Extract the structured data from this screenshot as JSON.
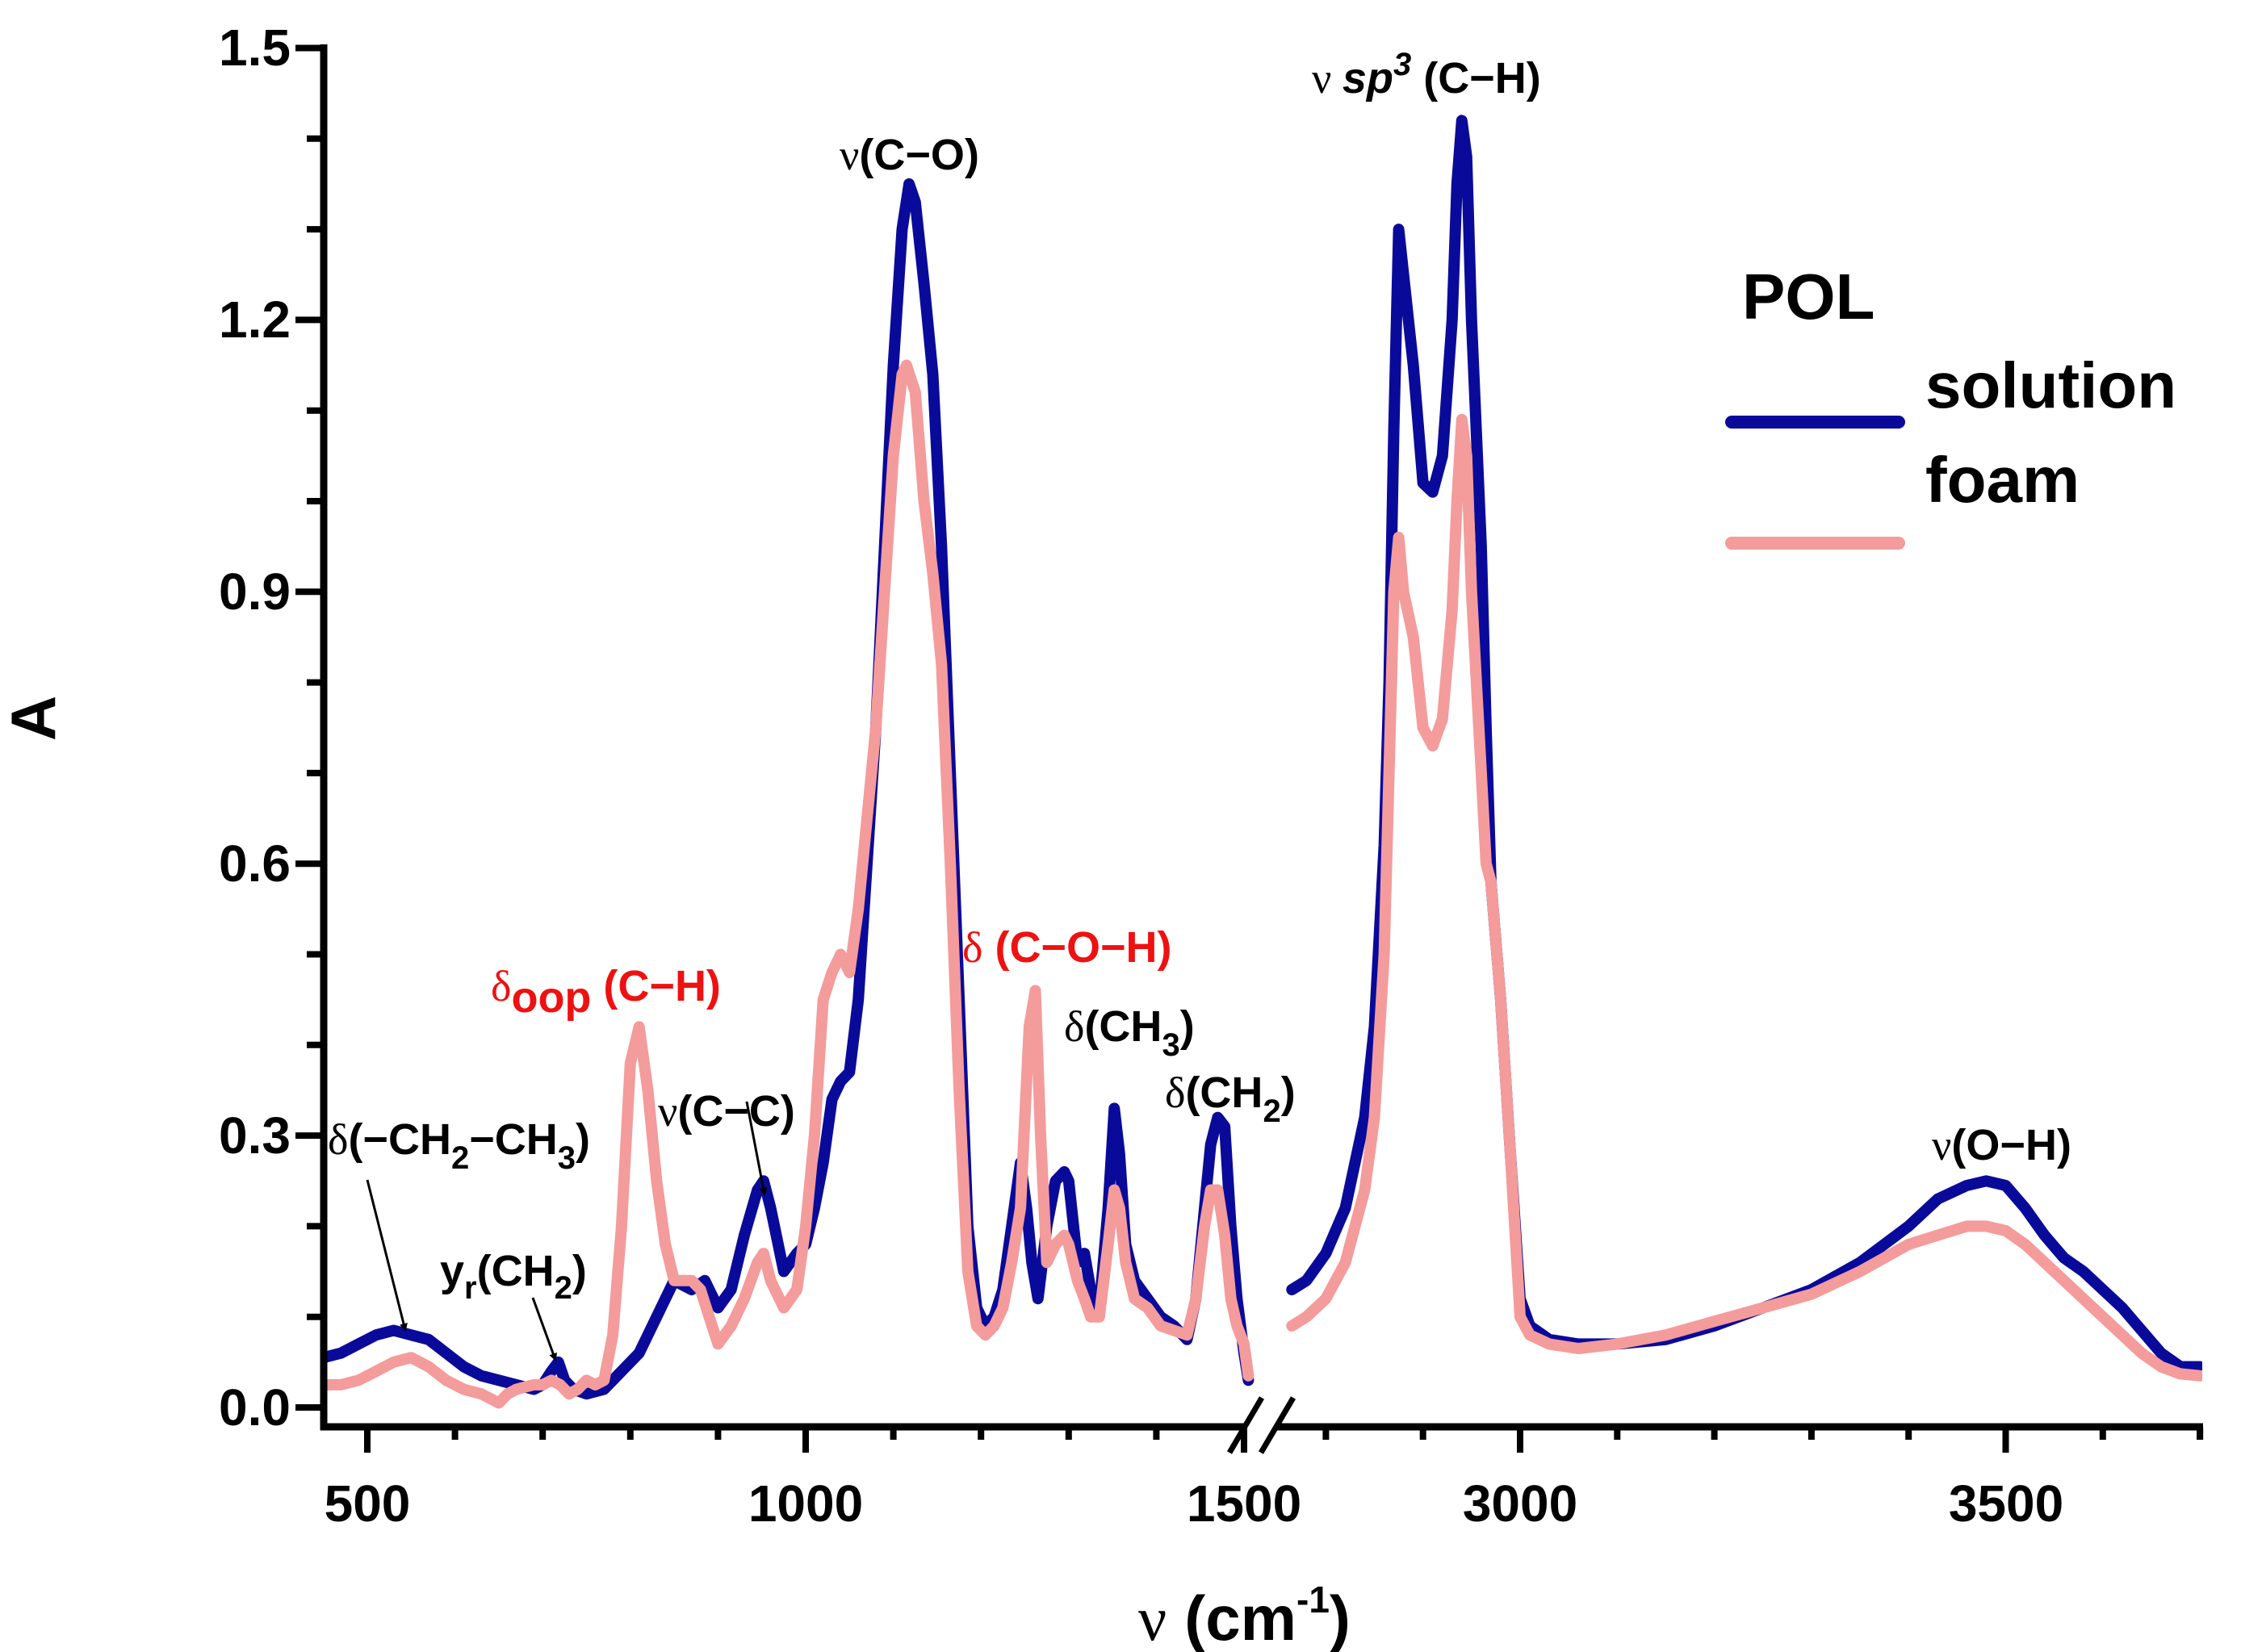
{
  "chart_data": {
    "type": "line",
    "title": "",
    "xlabel": "ν (cm⁻¹)",
    "xlabel_parts": {
      "symbol": "ν",
      "unit": "(cm",
      "exp": "-1",
      "close": ")"
    },
    "ylabel": "A",
    "ylim": [
      0.0,
      1.5
    ],
    "x_segments": [
      {
        "range": [
          450,
          1510
        ],
        "ticks": [
          500,
          1000,
          1500
        ],
        "tick_labels": [
          "500",
          "1000",
          "1500"
        ],
        "minor_step": 100
      },
      {
        "range": [
          2765,
          3700
        ],
        "ticks": [
          3000,
          3500
        ],
        "tick_labels": [
          "3000",
          "3500"
        ],
        "minor_step": 100
      }
    ],
    "axis_break": [
      1510,
      2765
    ],
    "yticks": [
      0.0,
      0.3,
      0.6,
      0.9,
      1.2,
      1.5
    ],
    "ytick_labels": [
      "0.0",
      "0.3",
      "0.6",
      "0.9",
      "1.2",
      "1.5"
    ],
    "y_minor_step": 0.1,
    "grid": false,
    "legend": {
      "title": "POL",
      "position": "top-right",
      "entries": [
        "solution",
        "foam"
      ]
    },
    "series": [
      {
        "name": "solution",
        "color": "#0a0a9a",
        "segments": [
          {
            "x": [
              450,
              470,
              490,
              510,
              530,
              550,
              570,
              590,
              610,
              630,
              650,
              670,
              690,
              700,
              710,
              718,
              725,
              735,
              750,
              770,
              790,
              810,
              830,
              850,
              870,
              885,
              900,
              915,
              930,
              945,
              952,
              960,
              975,
              990,
              1000,
              1010,
              1020,
              1030,
              1040,
              1050,
              1060,
              1070,
              1080,
              1090,
              1100,
              1110,
              1118,
              1125,
              1135,
              1145,
              1155,
              1165,
              1175,
              1185,
              1195,
              1205,
              1215,
              1225,
              1235,
              1245,
              1252,
              1258,
              1265,
              1275,
              1285,
              1295,
              1300,
              1310,
              1318,
              1325,
              1335,
              1345,
              1352,
              1358,
              1365,
              1375,
              1390,
              1405,
              1420,
              1435,
              1445,
              1455,
              1462,
              1470,
              1478,
              1485,
              1492,
              1500,
              1505
            ],
            "y": [
              0.055,
              0.06,
              0.07,
              0.08,
              0.085,
              0.08,
              0.075,
              0.06,
              0.045,
              0.035,
              0.03,
              0.025,
              0.02,
              0.025,
              0.04,
              0.05,
              0.03,
              0.02,
              0.015,
              0.02,
              0.04,
              0.06,
              0.1,
              0.14,
              0.13,
              0.14,
              0.11,
              0.13,
              0.19,
              0.24,
              0.25,
              0.22,
              0.15,
              0.17,
              0.18,
              0.22,
              0.27,
              0.34,
              0.36,
              0.37,
              0.45,
              0.6,
              0.75,
              0.95,
              1.15,
              1.3,
              1.35,
              1.33,
              1.24,
              1.14,
              0.95,
              0.7,
              0.45,
              0.2,
              0.11,
              0.09,
              0.1,
              0.13,
              0.2,
              0.27,
              0.22,
              0.16,
              0.12,
              0.2,
              0.25,
              0.26,
              0.25,
              0.16,
              0.17,
              0.13,
              0.11,
              0.22,
              0.33,
              0.28,
              0.18,
              0.14,
              0.12,
              0.1,
              0.09,
              0.075,
              0.12,
              0.22,
              0.29,
              0.32,
              0.31,
              0.2,
              0.12,
              0.06,
              0.03
            ]
          },
          {
            "x": [
              2765,
              2780,
              2800,
              2820,
              2840,
              2850,
              2860,
              2865,
              2870,
              2875,
              2880,
              2890,
              2900,
              2910,
              2920,
              2930,
              2935,
              2940,
              2945,
              2950,
              2960,
              2965,
              2970,
              2980,
              2990,
              3000,
              3010,
              3030,
              3060,
              3100,
              3150,
              3200,
              3250,
              3300,
              3350,
              3400,
              3430,
              3460,
              3480,
              3500,
              3520,
              3540,
              3560,
              3580,
              3600,
              3620,
              3640,
              3660,
              3680,
              3700
            ],
            "y": [
              0.13,
              0.14,
              0.17,
              0.22,
              0.32,
              0.42,
              0.62,
              0.8,
              1.08,
              1.3,
              1.25,
              1.15,
              1.02,
              1.01,
              1.05,
              1.2,
              1.35,
              1.42,
              1.38,
              1.2,
              0.95,
              0.75,
              0.58,
              0.45,
              0.28,
              0.12,
              0.09,
              0.075,
              0.07,
              0.07,
              0.075,
              0.09,
              0.11,
              0.13,
              0.16,
              0.2,
              0.23,
              0.245,
              0.25,
              0.245,
              0.22,
              0.19,
              0.165,
              0.15,
              0.13,
              0.11,
              0.085,
              0.06,
              0.045,
              0.045
            ]
          }
        ]
      },
      {
        "name": "foam",
        "color": "#f49b9b",
        "segments": [
          {
            "x": [
              450,
              470,
              490,
              510,
              530,
              550,
              570,
              590,
              610,
              630,
              650,
              660,
              670,
              690,
              700,
              710,
              720,
              730,
              740,
              750,
              760,
              770,
              780,
              790,
              800,
              810,
              820,
              830,
              840,
              850,
              860,
              870,
              880,
              890,
              900,
              915,
              930,
              945,
              952,
              960,
              975,
              990,
              1000,
              1010,
              1020,
              1030,
              1040,
              1050,
              1060,
              1070,
              1080,
              1090,
              1100,
              1110,
              1115,
              1125,
              1135,
              1145,
              1155,
              1165,
              1175,
              1185,
              1195,
              1205,
              1215,
              1225,
              1235,
              1245,
              1255,
              1262,
              1268,
              1275,
              1285,
              1295,
              1300,
              1310,
              1318,
              1325,
              1335,
              1345,
              1352,
              1358,
              1365,
              1375,
              1390,
              1405,
              1420,
              1435,
              1445,
              1455,
              1462,
              1470,
              1478,
              1485,
              1492,
              1500,
              1505
            ],
            "y": [
              0.025,
              0.025,
              0.03,
              0.04,
              0.05,
              0.055,
              0.045,
              0.03,
              0.02,
              0.015,
              0.005,
              0.015,
              0.02,
              0.025,
              0.025,
              0.03,
              0.025,
              0.015,
              0.02,
              0.03,
              0.025,
              0.03,
              0.08,
              0.2,
              0.38,
              0.42,
              0.35,
              0.25,
              0.18,
              0.14,
              0.14,
              0.14,
              0.13,
              0.1,
              0.07,
              0.09,
              0.12,
              0.16,
              0.17,
              0.14,
              0.11,
              0.13,
              0.2,
              0.3,
              0.45,
              0.48,
              0.5,
              0.48,
              0.55,
              0.65,
              0.75,
              0.9,
              1.05,
              1.14,
              1.15,
              1.12,
              1.0,
              0.92,
              0.82,
              0.6,
              0.35,
              0.15,
              0.09,
              0.08,
              0.09,
              0.11,
              0.16,
              0.22,
              0.42,
              0.46,
              0.3,
              0.16,
              0.18,
              0.19,
              0.18,
              0.14,
              0.12,
              0.1,
              0.1,
              0.18,
              0.24,
              0.22,
              0.16,
              0.12,
              0.11,
              0.09,
              0.085,
              0.08,
              0.12,
              0.2,
              0.24,
              0.24,
              0.19,
              0.12,
              0.09,
              0.07,
              0.035
            ]
          },
          {
            "x": [
              2765,
              2780,
              2800,
              2820,
              2840,
              2850,
              2860,
              2865,
              2870,
              2875,
              2880,
              2890,
              2900,
              2910,
              2920,
              2930,
              2935,
              2940,
              2945,
              2950,
              2960,
              2965,
              2970,
              2980,
              2990,
              3000,
              3010,
              3030,
              3060,
              3100,
              3150,
              3200,
              3250,
              3300,
              3350,
              3400,
              3430,
              3460,
              3480,
              3500,
              3520,
              3540,
              3560,
              3580,
              3600,
              3620,
              3640,
              3660,
              3680,
              3700
            ],
            "y": [
              0.09,
              0.1,
              0.12,
              0.16,
              0.24,
              0.32,
              0.5,
              0.7,
              0.9,
              0.96,
              0.9,
              0.85,
              0.75,
              0.73,
              0.76,
              0.88,
              1.0,
              1.09,
              1.05,
              0.9,
              0.7,
              0.6,
              0.58,
              0.45,
              0.28,
              0.1,
              0.08,
              0.07,
              0.065,
              0.07,
              0.08,
              0.095,
              0.11,
              0.125,
              0.15,
              0.18,
              0.19,
              0.2,
              0.2,
              0.195,
              0.18,
              0.16,
              0.14,
              0.12,
              0.1,
              0.08,
              0.06,
              0.045,
              0.037,
              0.035
            ]
          }
        ]
      }
    ],
    "annotations": [
      {
        "id": "ann-ch2ch3",
        "parts": [
          "δ",
          "(−CH",
          "2",
          "−CH",
          "3",
          ")"
        ],
        "color": "black",
        "arrow_to": [
          540,
          0.08
        ]
      },
      {
        "id": "ann-yr",
        "parts": [
          "y",
          "r",
          "(CH",
          "2",
          ")"
        ],
        "color": "black",
        "arrow_to": [
          718,
          0.05
        ]
      },
      {
        "id": "ann-cc",
        "parts": [
          "ν",
          "(C−C)"
        ],
        "color": "black",
        "arrow_to": [
          950,
          0.24
        ]
      },
      {
        "id": "ann-oop",
        "parts": [
          "δ",
          "oop",
          " (C−H)"
        ],
        "color": "red"
      },
      {
        "id": "ann-co",
        "parts": [
          "ν",
          "(C−O)"
        ],
        "color": "black"
      },
      {
        "id": "ann-coh",
        "parts": [
          "δ",
          " (C−O−H)"
        ],
        "color": "red"
      },
      {
        "id": "ann-ch3",
        "parts": [
          "δ",
          "(CH",
          "3",
          ")"
        ],
        "color": "black"
      },
      {
        "id": "ann-ch2",
        "parts": [
          "δ",
          "(CH",
          "2",
          ")"
        ],
        "color": "black"
      },
      {
        "id": "ann-sp3",
        "parts": [
          "ν ",
          "sp",
          "3",
          " (C−H)"
        ],
        "color": "black"
      },
      {
        "id": "ann-oh",
        "parts": [
          "ν",
          "(O−H)"
        ],
        "color": "black"
      }
    ]
  }
}
